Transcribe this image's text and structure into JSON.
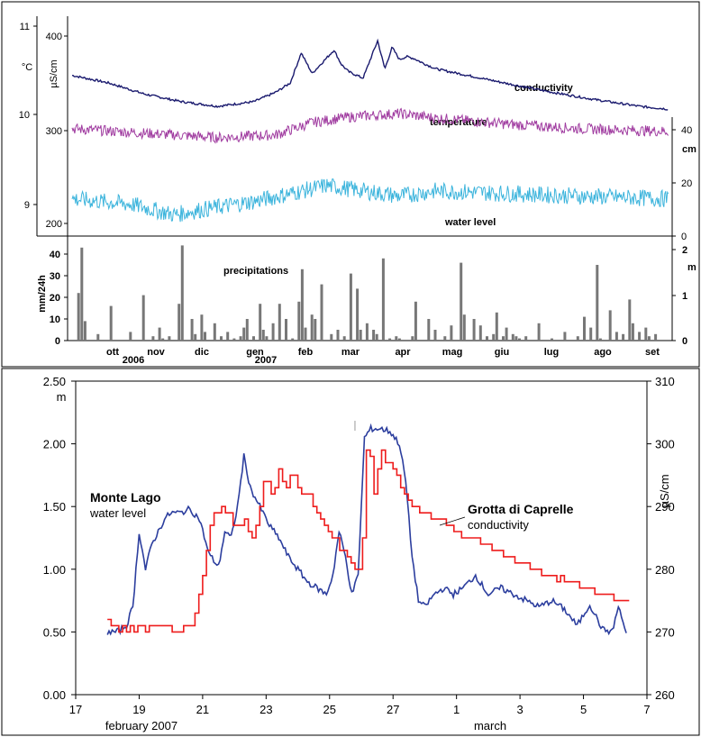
{
  "chart_data": [
    {
      "type": "line",
      "panel": "top",
      "left_axes": [
        {
          "label": "°C",
          "ticks": [
            "9",
            "10",
            "11"
          ],
          "ylim": [
            8.7,
            11.1
          ]
        },
        {
          "label": "µS/cm",
          "ticks": [
            "200",
            "300",
            "400"
          ]
        }
      ],
      "right_axis": {
        "label": "cm",
        "ticks": [
          "0",
          "20",
          "40"
        ]
      },
      "x_months": [
        "ott",
        "nov",
        "dic",
        "gen",
        "feb",
        "mar",
        "apr",
        "mag",
        "giu",
        "lug",
        "ago",
        "set"
      ],
      "x_years": [
        "2006",
        "2007"
      ],
      "series": [
        {
          "name": "conductivity",
          "color": "#1a1a6e",
          "x": [
            0,
            5,
            10,
            15,
            20,
            25,
            28,
            30,
            31.5,
            33,
            36,
            37,
            38,
            40,
            41,
            42,
            43,
            44,
            45,
            46,
            47,
            48,
            50,
            55,
            60,
            66,
            72,
            78,
            82
          ],
          "y": [
            358,
            350,
            338,
            330,
            325,
            330,
            340,
            350,
            382,
            360,
            385,
            370,
            362,
            355,
            375,
            395,
            365,
            388,
            375,
            378,
            376,
            372,
            365,
            357,
            349,
            340,
            332,
            325,
            322
          ]
        },
        {
          "name": "temperature",
          "color": "#a03ca0",
          "x": [
            0,
            10,
            20,
            28,
            33,
            38,
            45,
            50,
            60,
            70,
            82
          ],
          "y": [
            9.85,
            9.8,
            9.75,
            9.78,
            9.92,
            9.98,
            10.02,
            9.97,
            9.9,
            9.85,
            9.82
          ]
        },
        {
          "name": "water level",
          "color": "#3cb4dc",
          "x": [
            0,
            8,
            14,
            18,
            25,
            30,
            35,
            40,
            45,
            50,
            60,
            70,
            82
          ],
          "y": [
            14,
            12,
            8,
            10,
            13,
            16,
            19,
            17,
            15,
            17,
            16,
            15,
            14
          ]
        }
      ]
    },
    {
      "type": "bar",
      "panel": "middle",
      "title": "precipitations",
      "ylabel": "mm/24h",
      "ylim": [
        0,
        45
      ],
      "yticks": [
        "0",
        "10",
        "20",
        "30",
        "40"
      ],
      "right_axis": {
        "label": "m",
        "ticks": [
          "0",
          "1",
          "2"
        ]
      },
      "series": [
        {
          "color": "#777777",
          "x": [
            2,
            3,
            4,
            8,
            12,
            18,
            22,
            25,
            27,
            28,
            30,
            33,
            34,
            37,
            38,
            40,
            41,
            44,
            46,
            48,
            50,
            52,
            53,
            54,
            56,
            58,
            59,
            60,
            62,
            64,
            66,
            68,
            70,
            71,
            72,
            74,
            75,
            77,
            80,
            82,
            84,
            86,
            88,
            89,
            91,
            93,
            94,
            96,
            98,
            100,
            101,
            105,
            106,
            110,
            112,
            115,
            117,
            120,
            121,
            124,
            126,
            128,
            130,
            131,
            133,
            134,
            136,
            137,
            138,
            140,
            144,
            148,
            152,
            156,
            158,
            160,
            162,
            163,
            166,
            168,
            170,
            172,
            173,
            175,
            177,
            178,
            180
          ],
          "values": [
            22,
            43,
            9,
            3,
            16,
            4,
            21,
            2,
            6,
            1,
            2,
            17,
            44,
            10,
            3,
            12,
            4,
            8,
            2,
            4,
            1,
            2,
            6,
            10,
            2,
            17,
            5,
            2,
            8,
            17,
            10,
            1,
            18,
            33,
            6,
            12,
            10,
            26,
            3,
            5,
            2,
            31,
            24,
            5,
            8,
            5,
            3,
            38,
            1,
            2,
            1,
            2,
            18,
            10,
            5,
            2,
            7,
            36,
            12,
            10,
            7,
            2,
            3,
            13,
            2,
            6,
            3,
            2,
            1,
            2,
            8,
            1,
            4,
            2,
            11,
            6,
            35,
            1,
            14,
            4,
            3,
            19,
            8,
            4,
            6,
            2,
            3
          ]
        }
      ]
    },
    {
      "type": "line",
      "panel": "bottom",
      "xlim": [
        17,
        35
      ],
      "xticks": [
        "17",
        "19",
        "21",
        "23",
        "25",
        "27",
        "1",
        "3",
        "5",
        "7"
      ],
      "xsub": [
        "february 2007",
        "march"
      ],
      "ylabel": "m",
      "ylim": [
        0,
        2.5
      ],
      "yticks": [
        "0.00",
        "0.50",
        "1.00",
        "1.50",
        "2.00",
        "2.50"
      ],
      "y2label": "µS/cm",
      "y2lim": [
        260,
        310
      ],
      "y2ticks": [
        "260",
        "270",
        "280",
        "290",
        "300",
        "310"
      ],
      "series": [
        {
          "name": "water level",
          "label_title": "Monte Lago",
          "label_sub": "water level",
          "color": "#2c3e9e",
          "axis": "left",
          "x": [
            18.0,
            18.3,
            18.6,
            18.8,
            19.0,
            19.2,
            19.4,
            19.6,
            19.8,
            20.0,
            20.3,
            20.6,
            20.9,
            21.2,
            21.5,
            21.7,
            21.9,
            22.1,
            22.3,
            22.5,
            22.8,
            23.1,
            23.4,
            23.7,
            24.0,
            24.3,
            24.6,
            24.9,
            25.1,
            25.3,
            25.5,
            25.7,
            25.9,
            26.1,
            26.3,
            26.6,
            26.9,
            27.2,
            27.4,
            27.6,
            27.8,
            28.0,
            28.3,
            28.6,
            28.9,
            29.2,
            29.6,
            30.0,
            30.4,
            30.8,
            31.2,
            31.6,
            32.0,
            32.4,
            32.8,
            33.2,
            33.6,
            33.9,
            34.1,
            34.4
          ],
          "y": [
            0.5,
            0.5,
            0.55,
            0.7,
            1.3,
            1.0,
            1.2,
            1.3,
            1.4,
            1.45,
            1.45,
            1.48,
            1.4,
            1.12,
            1.02,
            1.3,
            1.25,
            1.5,
            1.9,
            1.65,
            1.5,
            1.35,
            1.25,
            1.1,
            1.0,
            0.9,
            0.85,
            0.8,
            0.95,
            1.3,
            1.1,
            0.8,
            0.95,
            2.05,
            2.12,
            2.12,
            2.1,
            2.0,
            1.7,
            1.1,
            0.75,
            0.7,
            0.8,
            0.85,
            0.8,
            0.85,
            0.95,
            0.8,
            0.85,
            0.8,
            0.75,
            0.7,
            0.75,
            0.68,
            0.55,
            0.72,
            0.52,
            0.5,
            0.7,
            0.45
          ]
        },
        {
          "name": "conductivity",
          "label_title": "Grotta di Caprelle",
          "label_sub": "conductivity",
          "color": "#ee1c1c",
          "axis": "right",
          "x": [
            18.0,
            18.2,
            18.5,
            19.0,
            19.5,
            20.0,
            20.3,
            20.6,
            20.8,
            21.0,
            21.3,
            21.6,
            21.8,
            22.0,
            22.3,
            22.6,
            22.9,
            23.0,
            23.2,
            23.4,
            23.6,
            23.8,
            24.0,
            24.3,
            24.6,
            25.0,
            25.4,
            25.8,
            26.0,
            26.2,
            26.4,
            26.6,
            26.8,
            27.0,
            27.3,
            27.6,
            28.0,
            28.5,
            29.0,
            29.5,
            30.0,
            30.5,
            31.0,
            31.5,
            32.0,
            32.5,
            33.0,
            33.5,
            34.0,
            34.5
          ],
          "y": [
            271.5,
            270.5,
            270.5,
            270.5,
            270.5,
            270.5,
            270.2,
            271,
            273,
            279,
            289,
            289.5,
            289.5,
            287,
            288,
            285,
            293,
            295,
            291,
            296,
            292,
            296,
            293,
            292,
            289,
            285.5,
            283,
            280,
            280.5,
            303,
            292,
            299,
            297,
            296,
            292,
            290,
            289,
            287.5,
            286,
            285,
            284,
            282,
            281,
            280,
            279,
            278,
            277,
            276,
            275.5,
            275
          ]
        }
      ]
    }
  ]
}
